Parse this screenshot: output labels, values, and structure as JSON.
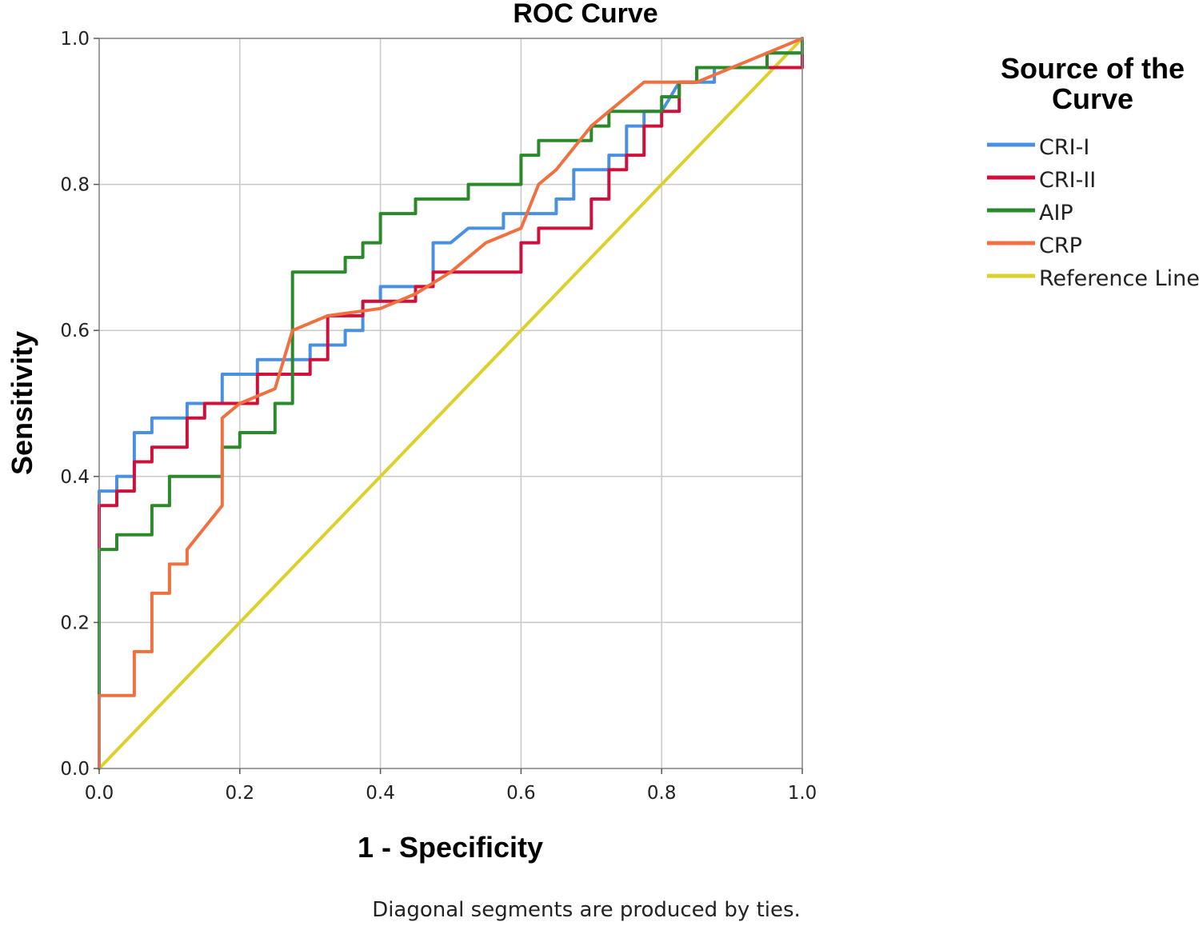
{
  "chart_data": {
    "type": "line",
    "title": "ROC Curve",
    "xlabel": "1 - Specificity",
    "ylabel": "Sensitivity",
    "xlim": [
      0,
      1
    ],
    "ylim": [
      0,
      1
    ],
    "xticks": [
      "0.0",
      "0.2",
      "0.4",
      "0.6",
      "0.8",
      "1.0"
    ],
    "yticks": [
      "0.0",
      "0.2",
      "0.4",
      "0.6",
      "0.8",
      "1.0"
    ],
    "grid": true,
    "legend": {
      "title_lines": [
        "Source of the",
        "Curve"
      ],
      "position": "right"
    },
    "footnote": "Diagonal segments are produced by ties.",
    "series": [
      {
        "name": "CRI-I",
        "color": "#4a90e2",
        "points": [
          [
            0,
            0
          ],
          [
            0,
            0.38
          ],
          [
            0.025,
            0.38
          ],
          [
            0.025,
            0.4
          ],
          [
            0.05,
            0.4
          ],
          [
            0.05,
            0.46
          ],
          [
            0.075,
            0.46
          ],
          [
            0.075,
            0.48
          ],
          [
            0.125,
            0.48
          ],
          [
            0.125,
            0.5
          ],
          [
            0.175,
            0.5
          ],
          [
            0.175,
            0.52
          ],
          [
            0.175,
            0.54
          ],
          [
            0.225,
            0.54
          ],
          [
            0.225,
            0.56
          ],
          [
            0.3,
            0.56
          ],
          [
            0.3,
            0.58
          ],
          [
            0.35,
            0.58
          ],
          [
            0.35,
            0.6
          ],
          [
            0.375,
            0.6
          ],
          [
            0.375,
            0.64
          ],
          [
            0.4,
            0.64
          ],
          [
            0.4,
            0.66
          ],
          [
            0.475,
            0.66
          ],
          [
            0.475,
            0.72
          ],
          [
            0.5,
            0.72
          ],
          [
            0.525,
            0.74
          ],
          [
            0.575,
            0.74
          ],
          [
            0.575,
            0.76
          ],
          [
            0.65,
            0.76
          ],
          [
            0.65,
            0.78
          ],
          [
            0.675,
            0.78
          ],
          [
            0.675,
            0.82
          ],
          [
            0.725,
            0.82
          ],
          [
            0.725,
            0.84
          ],
          [
            0.75,
            0.84
          ],
          [
            0.75,
            0.88
          ],
          [
            0.775,
            0.88
          ],
          [
            0.775,
            0.9
          ],
          [
            0.8,
            0.9
          ],
          [
            0.825,
            0.94
          ],
          [
            0.875,
            0.94
          ],
          [
            0.875,
            0.96
          ],
          [
            0.95,
            0.96
          ],
          [
            0.95,
            0.98
          ],
          [
            1,
            0.98
          ],
          [
            1,
            1
          ]
        ]
      },
      {
        "name": "CRI-II",
        "color": "#d0103a",
        "points": [
          [
            0,
            0.3
          ],
          [
            0,
            0.36
          ],
          [
            0.025,
            0.36
          ],
          [
            0.025,
            0.38
          ],
          [
            0.05,
            0.38
          ],
          [
            0.05,
            0.42
          ],
          [
            0.075,
            0.42
          ],
          [
            0.075,
            0.44
          ],
          [
            0.125,
            0.44
          ],
          [
            0.125,
            0.48
          ],
          [
            0.15,
            0.48
          ],
          [
            0.15,
            0.5
          ],
          [
            0.225,
            0.5
          ],
          [
            0.225,
            0.54
          ],
          [
            0.3,
            0.54
          ],
          [
            0.3,
            0.56
          ],
          [
            0.325,
            0.56
          ],
          [
            0.325,
            0.62
          ],
          [
            0.375,
            0.62
          ],
          [
            0.375,
            0.64
          ],
          [
            0.425,
            0.64
          ],
          [
            0.45,
            0.64
          ],
          [
            0.45,
            0.66
          ],
          [
            0.475,
            0.66
          ],
          [
            0.475,
            0.68
          ],
          [
            0.6,
            0.68
          ],
          [
            0.6,
            0.72
          ],
          [
            0.625,
            0.72
          ],
          [
            0.625,
            0.74
          ],
          [
            0.7,
            0.74
          ],
          [
            0.7,
            0.78
          ],
          [
            0.725,
            0.78
          ],
          [
            0.725,
            0.82
          ],
          [
            0.75,
            0.82
          ],
          [
            0.75,
            0.84
          ],
          [
            0.775,
            0.84
          ],
          [
            0.775,
            0.88
          ],
          [
            0.8,
            0.88
          ],
          [
            0.8,
            0.9
          ],
          [
            0.825,
            0.9
          ],
          [
            0.825,
            0.92
          ],
          [
            0.825,
            0.94
          ],
          [
            0.85,
            0.94
          ],
          [
            0.85,
            0.96
          ],
          [
            0.95,
            0.96
          ],
          [
            1,
            0.96
          ],
          [
            1,
            1
          ]
        ]
      },
      {
        "name": "AIP",
        "color": "#2a8a2a",
        "points": [
          [
            0,
            0.1
          ],
          [
            0,
            0.3
          ],
          [
            0.025,
            0.3
          ],
          [
            0.025,
            0.32
          ],
          [
            0.075,
            0.32
          ],
          [
            0.075,
            0.36
          ],
          [
            0.1,
            0.36
          ],
          [
            0.1,
            0.4
          ],
          [
            0.175,
            0.4
          ],
          [
            0.175,
            0.44
          ],
          [
            0.2,
            0.44
          ],
          [
            0.2,
            0.46
          ],
          [
            0.25,
            0.46
          ],
          [
            0.25,
            0.5
          ],
          [
            0.275,
            0.5
          ],
          [
            0.275,
            0.68
          ],
          [
            0.35,
            0.68
          ],
          [
            0.35,
            0.7
          ],
          [
            0.375,
            0.7
          ],
          [
            0.375,
            0.72
          ],
          [
            0.4,
            0.72
          ],
          [
            0.4,
            0.76
          ],
          [
            0.45,
            0.76
          ],
          [
            0.45,
            0.78
          ],
          [
            0.525,
            0.78
          ],
          [
            0.525,
            0.8
          ],
          [
            0.6,
            0.8
          ],
          [
            0.6,
            0.84
          ],
          [
            0.625,
            0.84
          ],
          [
            0.625,
            0.86
          ],
          [
            0.7,
            0.86
          ],
          [
            0.7,
            0.88
          ],
          [
            0.725,
            0.88
          ],
          [
            0.725,
            0.9
          ],
          [
            0.8,
            0.9
          ],
          [
            0.8,
            0.92
          ],
          [
            0.825,
            0.92
          ],
          [
            0.825,
            0.94
          ],
          [
            0.85,
            0.94
          ],
          [
            0.85,
            0.96
          ],
          [
            0.95,
            0.96
          ],
          [
            0.95,
            0.98
          ],
          [
            1,
            0.98
          ],
          [
            1,
            1
          ]
        ]
      },
      {
        "name": "CRP",
        "color": "#f07040",
        "points": [
          [
            0,
            0
          ],
          [
            0,
            0.1
          ],
          [
            0.05,
            0.1
          ],
          [
            0.05,
            0.16
          ],
          [
            0.075,
            0.16
          ],
          [
            0.075,
            0.24
          ],
          [
            0.1,
            0.24
          ],
          [
            0.1,
            0.28
          ],
          [
            0.125,
            0.28
          ],
          [
            0.125,
            0.3
          ],
          [
            0.175,
            0.36
          ],
          [
            0.175,
            0.48
          ],
          [
            0.2,
            0.5
          ],
          [
            0.225,
            0.51
          ],
          [
            0.25,
            0.52
          ],
          [
            0.275,
            0.6
          ],
          [
            0.325,
            0.62
          ],
          [
            0.4,
            0.63
          ],
          [
            0.45,
            0.65
          ],
          [
            0.5,
            0.68
          ],
          [
            0.55,
            0.72
          ],
          [
            0.6,
            0.74
          ],
          [
            0.625,
            0.8
          ],
          [
            0.65,
            0.82
          ],
          [
            0.7,
            0.88
          ],
          [
            0.75,
            0.92
          ],
          [
            0.775,
            0.94
          ],
          [
            0.8,
            0.94
          ],
          [
            0.825,
            0.94
          ],
          [
            0.85,
            0.94
          ],
          [
            0.9,
            0.96
          ],
          [
            0.95,
            0.98
          ],
          [
            1,
            1
          ]
        ]
      },
      {
        "name": "Reference Line",
        "color": "#dcd12a",
        "points": [
          [
            0,
            0
          ],
          [
            1,
            1
          ]
        ]
      }
    ]
  }
}
